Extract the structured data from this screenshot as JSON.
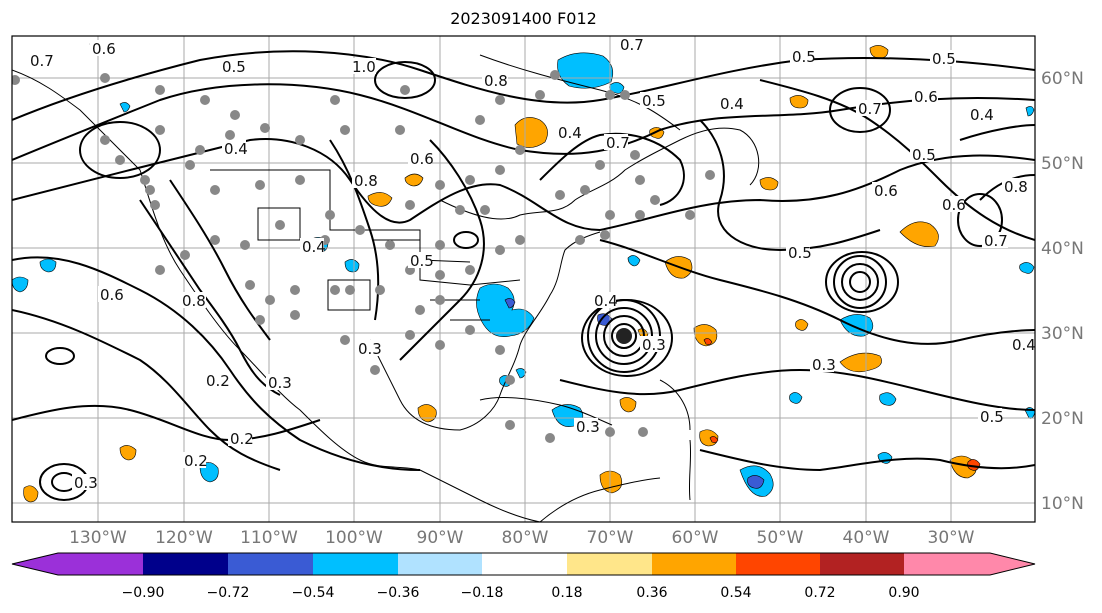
{
  "title": "2023091400 F012",
  "longitude_labels": [
    "130°W",
    "120°W",
    "110°W",
    "100°W",
    "90°W",
    "80°W",
    "70°W",
    "60°W",
    "50°W",
    "40°W",
    "30°W"
  ],
  "latitude_labels": [
    "60°N",
    "50°N",
    "40°N",
    "30°N",
    "20°N",
    "10°N"
  ],
  "contour_labels": [
    "0.7",
    "0.6",
    "0.5",
    "1.0",
    "0.8",
    "0.7",
    "0.5",
    "0.7",
    "0.5",
    "0.4",
    "0.6",
    "0.5",
    "0.4",
    "0.4",
    "0.6",
    "0.8",
    "0.6",
    "0.7",
    "0.5",
    "0.4",
    "0.5",
    "0.6",
    "0.8",
    "0.7",
    "0.6",
    "0.8",
    "0.4",
    "0.5",
    "0.3",
    "0.5",
    "0.4",
    "0.3",
    "0.2",
    "0.2",
    "0.2",
    "0.3",
    "0.3",
    "0.3",
    "0.4",
    "0.3"
  ],
  "colorbar": {
    "tick_labels": [
      "−0.90",
      "−0.72",
      "−0.54",
      "−0.36",
      "−0.18",
      "0.18",
      "0.36",
      "0.54",
      "0.72",
      "0.90"
    ],
    "colors": [
      "#9b30d9",
      "#00008b",
      "#3a5bd4",
      "#00bfff",
      "#b0e2ff",
      "#ffffff",
      "#ffe68a",
      "#ffa500",
      "#ff4500",
      "#b22222",
      "#ff88aa"
    ]
  }
}
